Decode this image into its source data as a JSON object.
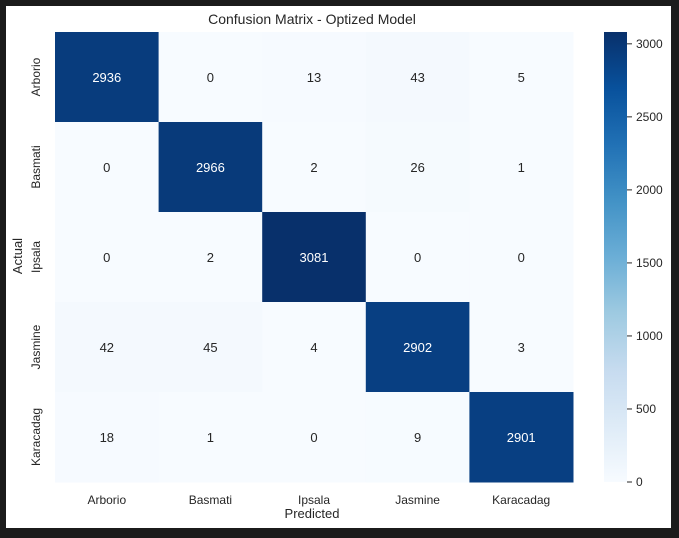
{
  "chart_data": {
    "type": "heatmap",
    "title": "Confusion Matrix - Optized Model",
    "xlabel": "Predicted",
    "ylabel": "Actual",
    "x_categories": [
      "Arborio",
      "Basmati",
      "Ipsala",
      "Jasmine",
      "Karacadag"
    ],
    "y_categories": [
      "Arborio",
      "Basmati",
      "Ipsala",
      "Jasmine",
      "Karacadag"
    ],
    "values": [
      [
        2936,
        0,
        13,
        43,
        5
      ],
      [
        0,
        2966,
        2,
        26,
        1
      ],
      [
        0,
        2,
        3081,
        0,
        0
      ],
      [
        42,
        45,
        4,
        2902,
        3
      ],
      [
        18,
        1,
        0,
        9,
        2901
      ]
    ],
    "colorbar": {
      "min": 0,
      "max": 3081,
      "ticks": [
        0,
        500,
        1000,
        1500,
        2000,
        2500,
        3000
      ],
      "colormap": "Blues",
      "colors": [
        "#f7fbff",
        "#deebf7",
        "#c6dbef",
        "#9ecae1",
        "#6baed6",
        "#4292c6",
        "#2171b5",
        "#08519c",
        "#08306b"
      ]
    },
    "grid": false,
    "colorbar_position": "right"
  }
}
